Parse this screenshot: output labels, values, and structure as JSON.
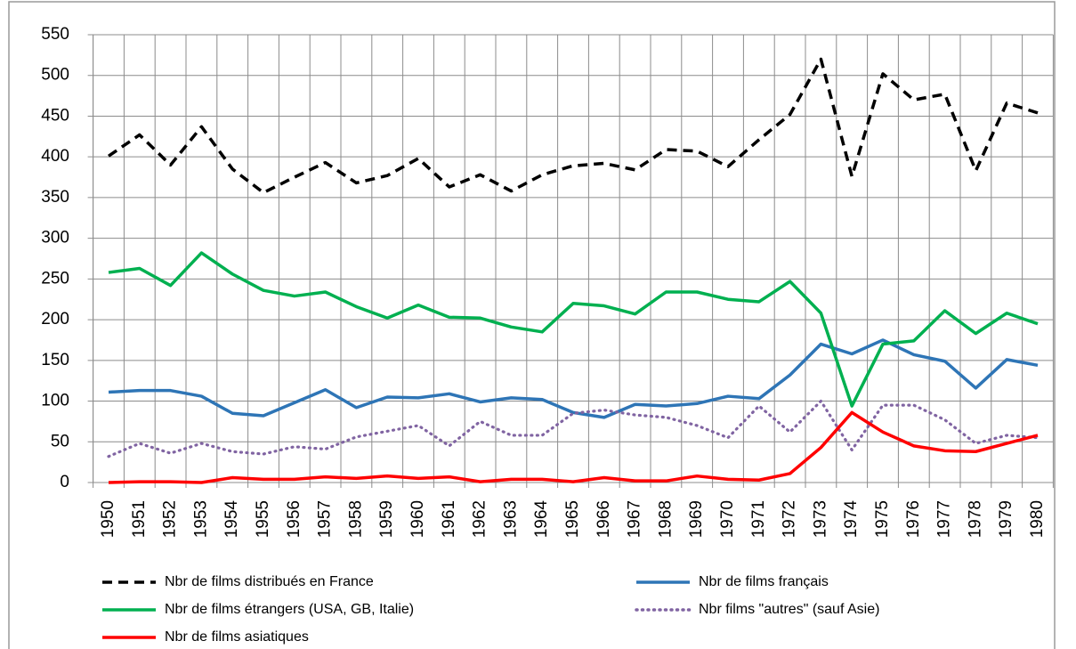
{
  "chart_data": {
    "type": "line",
    "categories": [
      "1950",
      "1951",
      "1952",
      "1953",
      "1954",
      "1955",
      "1956",
      "1957",
      "1958",
      "1959",
      "1960",
      "1961",
      "1962",
      "1963",
      "1964",
      "1965",
      "1966",
      "1967",
      "1968",
      "1969",
      "1970",
      "1971",
      "1972",
      "1973",
      "1974",
      "1975",
      "1976",
      "1977",
      "1978",
      "1979",
      "1980"
    ],
    "series": [
      {
        "name": "Nbr de films distribués en France",
        "color": "#000000",
        "style": "dashed",
        "values": [
          401,
          427,
          390,
          437,
          385,
          356,
          375,
          393,
          368,
          377,
          398,
          363,
          378,
          358,
          378,
          389,
          392,
          384,
          409,
          407,
          388,
          421,
          452,
          520,
          376,
          502,
          470,
          477,
          383,
          466,
          454
        ]
      },
      {
        "name": "Nbr de films français",
        "color": "#2e75b6",
        "style": "solid",
        "values": [
          111,
          113,
          113,
          106,
          85,
          82,
          98,
          114,
          92,
          105,
          104,
          109,
          99,
          104,
          102,
          86,
          80,
          96,
          94,
          97,
          106,
          103,
          132,
          170,
          158,
          175,
          157,
          149,
          116,
          151,
          144
        ]
      },
      {
        "name": "Nbr de films étrangers (USA, GB, Italie)",
        "color": "#00b050",
        "style": "solid",
        "values": [
          258,
          263,
          242,
          282,
          256,
          236,
          229,
          234,
          216,
          202,
          218,
          203,
          202,
          191,
          185,
          220,
          217,
          207,
          234,
          234,
          225,
          222,
          247,
          208,
          94,
          170,
          174,
          211,
          183,
          208,
          195
        ]
      },
      {
        "name": "Nbr films \"autres\" (sauf Asie)",
        "color": "#8064a2",
        "style": "dotted",
        "values": [
          32,
          48,
          36,
          48,
          38,
          35,
          44,
          41,
          56,
          63,
          70,
          45,
          75,
          58,
          58,
          85,
          89,
          83,
          80,
          70,
          55,
          94,
          62,
          100,
          40,
          95,
          95,
          77,
          48,
          58,
          55
        ]
      },
      {
        "name": "Nbr de films asiatiques",
        "color": "#ff0000",
        "style": "solid",
        "values": [
          0,
          1,
          1,
          0,
          6,
          4,
          4,
          7,
          5,
          8,
          5,
          7,
          1,
          4,
          4,
          1,
          6,
          2,
          2,
          8,
          4,
          3,
          11,
          43,
          86,
          62,
          45,
          39,
          38,
          48,
          58
        ]
      }
    ],
    "ylim": [
      0,
      550
    ],
    "yticks": [
      0,
      50,
      100,
      150,
      200,
      250,
      300,
      350,
      400,
      450,
      500,
      550
    ],
    "grid": true
  }
}
